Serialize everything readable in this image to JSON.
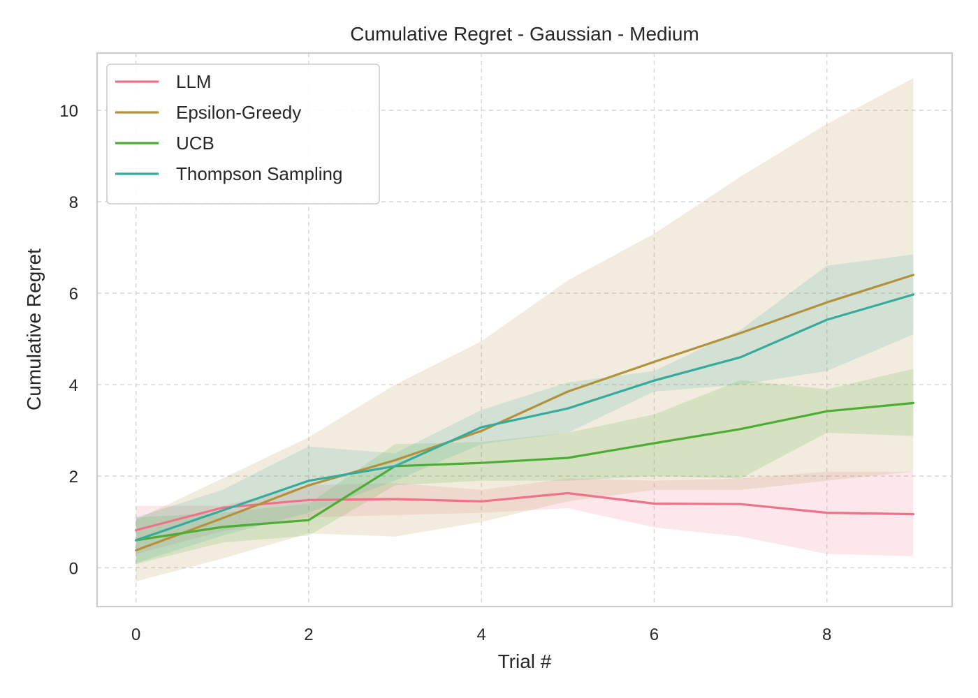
{
  "chart_data": {
    "type": "line",
    "title": "Cumulative Regret - Gaussian - Medium",
    "xlabel": "Trial #",
    "ylabel": "Cumulative Regret",
    "xlim": [
      -0.45,
      9.45
    ],
    "ylim": [
      -0.85,
      11.25
    ],
    "xticks": [
      0,
      2,
      4,
      6,
      8
    ],
    "yticks": [
      0,
      2,
      4,
      6,
      8,
      10
    ],
    "grid": true,
    "legend_position": "top-left",
    "x": [
      0,
      1,
      2,
      3,
      4,
      5,
      6,
      7,
      8,
      9
    ],
    "series": [
      {
        "name": "LLM",
        "color": "#f0728a",
        "values": [
          0.82,
          1.31,
          1.48,
          1.5,
          1.45,
          1.63,
          1.4,
          1.39,
          1.2,
          1.17
        ],
        "lower": [
          0.3,
          0.8,
          1.1,
          1.15,
          1.2,
          1.3,
          0.88,
          0.68,
          0.3,
          0.25
        ],
        "upper": [
          1.35,
          1.35,
          1.8,
          1.85,
          1.7,
          1.95,
          1.9,
          1.95,
          2.1,
          2.1
        ]
      },
      {
        "name": "Epsilon-Greedy",
        "color": "#b3913a",
        "values": [
          0.38,
          1.08,
          1.8,
          2.35,
          2.99,
          3.85,
          4.5,
          5.13,
          5.8,
          6.4
        ],
        "lower": [
          -0.3,
          0.2,
          0.75,
          0.68,
          1.0,
          1.45,
          1.7,
          1.7,
          1.9,
          2.1
        ],
        "upper": [
          1.05,
          1.95,
          2.85,
          4.0,
          4.95,
          6.28,
          7.3,
          8.55,
          9.7,
          10.7
        ]
      },
      {
        "name": "UCB",
        "color": "#4cad34",
        "values": [
          0.6,
          0.89,
          1.04,
          2.22,
          2.29,
          2.4,
          2.72,
          3.03,
          3.42,
          3.6
        ],
        "lower": [
          0.08,
          0.55,
          0.7,
          1.8,
          1.9,
          1.9,
          2.0,
          1.95,
          2.95,
          2.88
        ],
        "upper": [
          1.1,
          1.2,
          1.4,
          2.7,
          2.75,
          2.95,
          3.35,
          4.1,
          3.9,
          4.35
        ]
      },
      {
        "name": "Thompson Sampling",
        "color": "#35aa9e",
        "values": [
          0.6,
          1.25,
          1.9,
          2.22,
          3.07,
          3.48,
          4.09,
          4.6,
          5.42,
          5.97
        ],
        "lower": [
          0.1,
          0.7,
          1.2,
          1.9,
          2.7,
          2.95,
          3.85,
          4.0,
          4.3,
          5.1
        ],
        "upper": [
          1.1,
          1.7,
          2.65,
          2.5,
          3.45,
          4.05,
          4.3,
          5.2,
          6.6,
          6.85
        ]
      }
    ]
  }
}
